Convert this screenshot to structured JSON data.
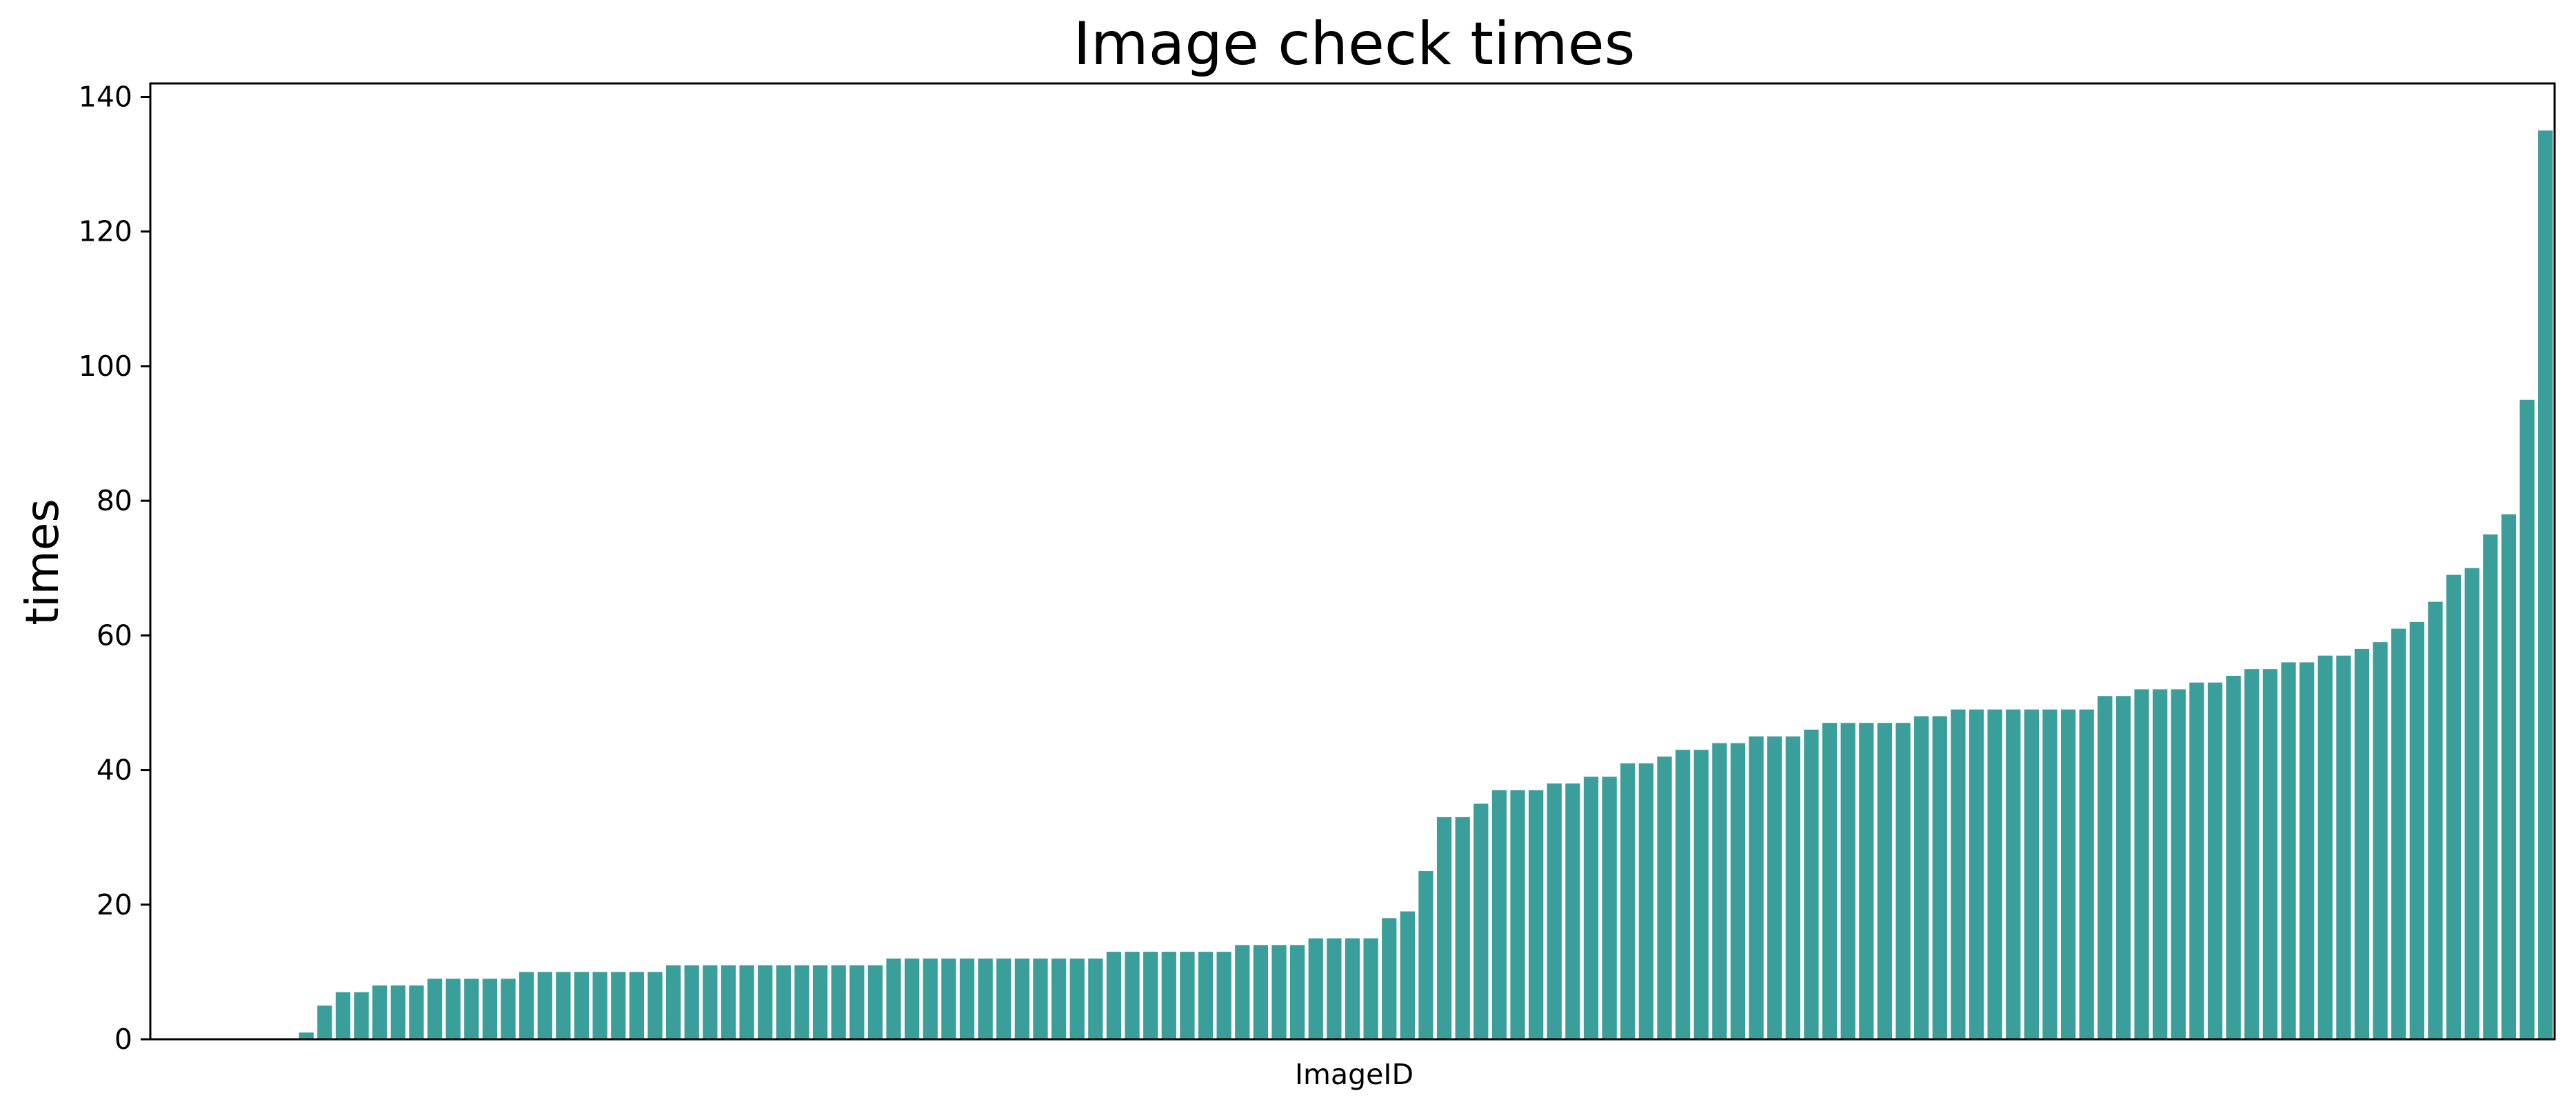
{
  "chart_data": {
    "type": "bar",
    "title": "Image check times",
    "xlabel": "ImageID",
    "ylabel": "times",
    "ylim": [
      0,
      142
    ],
    "yticks": [
      0,
      20,
      40,
      60,
      80,
      100,
      120,
      140
    ],
    "show_x_ticks": false,
    "grid": false,
    "legend": "none",
    "bar_color": "#3a9f9a",
    "series": [
      {
        "values": [
          0,
          0,
          0,
          0,
          0,
          0,
          0,
          0,
          1,
          5,
          7,
          7,
          8,
          8,
          8,
          9,
          9,
          9,
          9,
          9,
          10,
          10,
          10,
          10,
          10,
          10,
          10,
          10,
          11,
          11,
          11,
          11,
          11,
          11,
          11,
          11,
          11,
          11,
          11,
          11,
          12,
          12,
          12,
          12,
          12,
          12,
          12,
          12,
          12,
          12,
          12,
          12,
          13,
          13,
          13,
          13,
          13,
          13,
          13,
          14,
          14,
          14,
          14,
          15,
          15,
          15,
          15,
          18,
          19,
          25,
          33,
          33,
          35,
          37,
          37,
          37,
          38,
          38,
          39,
          39,
          41,
          41,
          42,
          43,
          43,
          44,
          44,
          45,
          45,
          45,
          46,
          47,
          47,
          47,
          47,
          47,
          48,
          48,
          49,
          49,
          49,
          49,
          49,
          49,
          49,
          49,
          51,
          51,
          52,
          52,
          52,
          53,
          53,
          54,
          55,
          55,
          56,
          56,
          57,
          57,
          58,
          59,
          61,
          62,
          65,
          69,
          70,
          75,
          78,
          95,
          135
        ]
      }
    ]
  }
}
